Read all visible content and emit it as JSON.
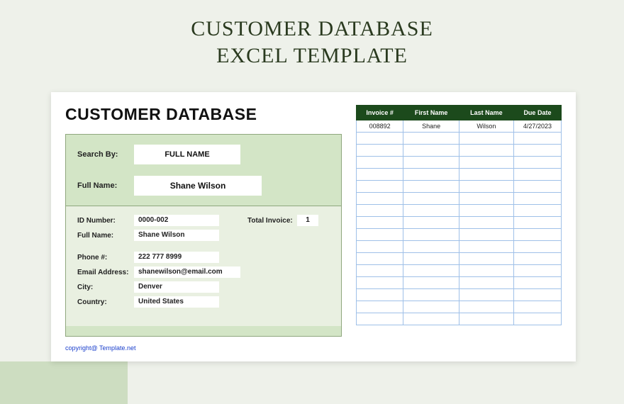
{
  "hero": {
    "line1": "CUSTOMER DATABASE",
    "line2": "EXCEL TEMPLATE",
    "title_color": "#2a3a1f",
    "title_fontsize": 30
  },
  "page": {
    "background_color": "#eef1ea",
    "accent_color": "#cdddc1",
    "sheet_color": "#ffffff"
  },
  "db": {
    "title": "CUSTOMER DATABASE",
    "panel_bg": "#d3e5c6",
    "panel_border": "#8fa77e",
    "details_bg": "#e9f0e1",
    "search": {
      "label": "Search By:",
      "value": "FULL NAME"
    },
    "name": {
      "label": "Full Name:",
      "value": "Shane Wilson"
    },
    "details": {
      "id_label": "ID Number:",
      "id_value": "0000-002",
      "totinv_label": "Total Invoice:",
      "totinv_value": "1",
      "fullname_label": "Full Name:",
      "fullname_value": "Shane Wilson",
      "phone_label": "Phone #:",
      "phone_value": "222 777 8999",
      "email_label": "Email Address:",
      "email_value": "shanewilson@email.com",
      "city_label": "City:",
      "city_value": "Denver",
      "country_label": "Country:",
      "country_value": "United States"
    }
  },
  "table": {
    "header_bg": "#1c4a1c",
    "header_fg": "#ffffff",
    "cell_border": "#9fc0e8",
    "columns": [
      "Invoice #",
      "First Name",
      "Last Name",
      "Due Date"
    ],
    "rows": [
      [
        "008892",
        "Shane",
        "Wilson",
        "4/27/2023"
      ]
    ],
    "empty_rows": 16
  },
  "footer": {
    "copyright": "copyright@ Template.net",
    "link_color": "#1a3fcc"
  }
}
